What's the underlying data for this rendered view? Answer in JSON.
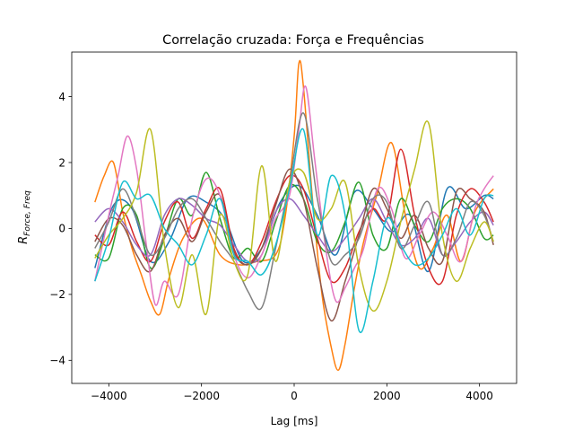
{
  "chart_data": {
    "type": "line",
    "title": "Correlação cruzada: Força e Frequências",
    "xlabel": "Lag [ms]",
    "ylabel": {
      "main": "R",
      "sub": "Force, Freq"
    },
    "xlim": [
      -4800,
      4800
    ],
    "ylim": [
      -4.7,
      5.35
    ],
    "xticks": [
      -4000,
      -2000,
      0,
      2000,
      4000
    ],
    "yticks": [
      -4,
      -2,
      0,
      2,
      4
    ],
    "grid": false,
    "legend": "none",
    "series": [
      {
        "color": "#1f77b4",
        "x": [
          -4300,
          -3900,
          -3500,
          -3100,
          -2700,
          -2300,
          -1900,
          -1500,
          -1100,
          -700,
          -300,
          100,
          500,
          900,
          1300,
          1700,
          2100,
          2500,
          2900,
          3300,
          3700,
          4100,
          4300
        ],
        "y": [
          -1.2,
          0.7,
          0.6,
          -1.0,
          -0.4,
          0.9,
          0.8,
          0.3,
          -1.0,
          -0.6,
          0.8,
          1.3,
          0.4,
          -0.8,
          1.1,
          0.6,
          -0.1,
          0.4,
          -1.3,
          1.2,
          0.6,
          1.0,
          0.9
        ]
      },
      {
        "color": "#ff7f0e",
        "x": [
          -4300,
          -4100,
          -3900,
          -3700,
          -3500,
          -3300,
          -3100,
          -2900,
          -2700,
          -2400,
          -2000,
          -1600,
          -1200,
          -800,
          -400,
          -200,
          0,
          100,
          200,
          400,
          600,
          800,
          950,
          1100,
          1300,
          1500,
          1800,
          2100,
          2400,
          2700,
          3000,
          3300,
          3600,
          3900,
          4300
        ],
        "y": [
          0.8,
          1.6,
          2.0,
          0.5,
          -0.6,
          -1.4,
          -2.2,
          -2.6,
          -1.5,
          -0.3,
          0.3,
          -0.8,
          -1.1,
          -1.0,
          -0.8,
          0.3,
          2.8,
          5.0,
          4.3,
          0.8,
          -2.0,
          -3.6,
          -4.3,
          -3.5,
          -1.8,
          -0.4,
          1.1,
          2.6,
          0.4,
          -1.2,
          -0.6,
          0.4,
          -1.0,
          0.5,
          1.2
        ]
      },
      {
        "color": "#2ca02c",
        "x": [
          -4300,
          -4000,
          -3700,
          -3400,
          -3100,
          -2800,
          -2500,
          -2200,
          -1900,
          -1600,
          -1300,
          -1000,
          -700,
          -400,
          -100,
          200,
          500,
          800,
          1100,
          1400,
          1700,
          2000,
          2300,
          2600,
          2900,
          3200,
          3500,
          3800,
          4100,
          4300
        ],
        "y": [
          -0.8,
          -0.9,
          0.6,
          0.4,
          -1.2,
          -0.3,
          0.9,
          0.4,
          1.7,
          0.3,
          -0.9,
          -0.6,
          -1.0,
          0.2,
          1.3,
          0.9,
          -0.4,
          -0.7,
          0.2,
          1.4,
          -0.2,
          -0.6,
          0.9,
          0.1,
          -0.4,
          0.6,
          0.9,
          0.6,
          -0.3,
          -0.2
        ]
      },
      {
        "color": "#d62728",
        "x": [
          -4300,
          -4000,
          -3700,
          -3400,
          -3100,
          -2800,
          -2500,
          -2200,
          -1900,
          -1600,
          -1300,
          -1000,
          -700,
          -400,
          -100,
          200,
          500,
          800,
          1100,
          1400,
          1700,
          2000,
          2300,
          2600,
          2900,
          3200,
          3500,
          3800,
          4100,
          4300
        ],
        "y": [
          -0.2,
          -0.5,
          0.5,
          -0.4,
          -1.0,
          0.2,
          0.8,
          -0.3,
          0.6,
          1.2,
          -0.6,
          -1.1,
          -0.4,
          0.8,
          1.6,
          1.2,
          -0.3,
          -1.6,
          -1.2,
          -0.1,
          0.6,
          0.3,
          2.4,
          0.4,
          -1.2,
          -1.6,
          0.4,
          1.2,
          0.8,
          0.2
        ]
      },
      {
        "color": "#9467bd",
        "x": [
          -4300,
          -4000,
          -3700,
          -3400,
          -3100,
          -2800,
          -2500,
          -2200,
          -1900,
          -1600,
          -1300,
          -1000,
          -700,
          -400,
          -100,
          200,
          500,
          800,
          1100,
          1400,
          1700,
          2000,
          2300,
          2600,
          2900,
          3200,
          3500,
          3800,
          4100,
          4300
        ],
        "y": [
          0.2,
          0.6,
          0.2,
          -0.5,
          -0.8,
          0.4,
          0.9,
          0.7,
          0.3,
          0.1,
          -0.5,
          -1.0,
          -0.8,
          0.5,
          0.9,
          0.4,
          -0.2,
          -0.7,
          -0.3,
          0.3,
          0.9,
          0.2,
          -0.5,
          -0.3,
          0.3,
          -0.8,
          -0.4,
          0.2,
          0.5,
          0.1
        ]
      },
      {
        "color": "#8c564b",
        "x": [
          -4300,
          -4000,
          -3700,
          -3400,
          -3100,
          -2800,
          -2500,
          -2200,
          -1900,
          -1600,
          -1300,
          -1000,
          -700,
          -400,
          -100,
          200,
          500,
          800,
          1100,
          1400,
          1700,
          2000,
          2300,
          2600,
          2900,
          3200,
          3500,
          3800,
          4100,
          4300
        ],
        "y": [
          -0.4,
          0.3,
          0.1,
          -0.8,
          -1.3,
          -0.2,
          0.3,
          -0.4,
          0.5,
          1.0,
          -0.7,
          -1.1,
          -0.6,
          0.7,
          1.8,
          0.9,
          -1.2,
          -2.8,
          -1.6,
          -0.2,
          1.2,
          0.6,
          -0.3,
          0.4,
          -0.6,
          -1.0,
          1.1,
          0.9,
          0.5,
          -0.5
        ]
      },
      {
        "color": "#e377c2",
        "x": [
          -4300,
          -4000,
          -3800,
          -3600,
          -3400,
          -3200,
          -3000,
          -2800,
          -2500,
          -2200,
          -1900,
          -1600,
          -1300,
          -1000,
          -700,
          -400,
          -100,
          100,
          250,
          450,
          700,
          900,
          1100,
          1300,
          1500,
          1800,
          2100,
          2400,
          2700,
          3000,
          3300,
          3600,
          3900,
          4100,
          4300
        ],
        "y": [
          -1.6,
          0.4,
          1.6,
          2.8,
          1.8,
          -0.4,
          -2.3,
          -1.6,
          -2.0,
          0.3,
          1.5,
          1.0,
          -0.8,
          -1.5,
          -0.8,
          0.3,
          1.0,
          3.0,
          4.3,
          2.0,
          -0.8,
          -2.2,
          -1.8,
          -1.2,
          -0.6,
          1.2,
          0.6,
          -0.9,
          -0.2,
          0.5,
          -0.2,
          -1.0,
          0.6,
          1.2,
          1.6
        ]
      },
      {
        "color": "#7f7f7f",
        "x": [
          -4300,
          -4000,
          -3700,
          -3400,
          -3100,
          -2800,
          -2500,
          -2200,
          -1900,
          -1600,
          -1300,
          -1000,
          -700,
          -400,
          -100,
          200,
          500,
          800,
          1100,
          1400,
          1700,
          2000,
          2300,
          2600,
          2900,
          3200,
          3500,
          3800,
          4100,
          4300
        ],
        "y": [
          -0.6,
          0.2,
          1.2,
          0.3,
          -0.8,
          -0.3,
          0.6,
          0.9,
          0.3,
          -0.4,
          -1.0,
          -1.9,
          -2.4,
          -0.6,
          1.4,
          3.5,
          0.9,
          -1.0,
          -0.8,
          -0.3,
          0.9,
          0.8,
          -0.6,
          0.1,
          0.8,
          -0.8,
          -0.3,
          0.8,
          0.4,
          -0.4
        ]
      },
      {
        "color": "#bcbd22",
        "x": [
          -4300,
          -4000,
          -3700,
          -3400,
          -3100,
          -2800,
          -2500,
          -2200,
          -1900,
          -1600,
          -1300,
          -1000,
          -700,
          -400,
          -100,
          200,
          500,
          800,
          1100,
          1400,
          1700,
          2000,
          2300,
          2600,
          2900,
          3200,
          3500,
          3800,
          4100,
          4300
        ],
        "y": [
          -0.9,
          -0.2,
          0.3,
          1.1,
          3.0,
          -0.5,
          -2.4,
          -0.8,
          -2.6,
          0.4,
          -1.0,
          -1.4,
          1.9,
          -1.0,
          1.4,
          1.7,
          0.3,
          0.6,
          1.4,
          -1.2,
          -2.5,
          -1.6,
          0.2,
          1.8,
          3.2,
          -0.2,
          -1.6,
          -0.6,
          0.2,
          -0.4
        ]
      },
      {
        "color": "#17becf",
        "x": [
          -4300,
          -4000,
          -3700,
          -3400,
          -3100,
          -2800,
          -2500,
          -2200,
          -1900,
          -1600,
          -1300,
          -1000,
          -700,
          -400,
          -100,
          200,
          500,
          800,
          1100,
          1400,
          1700,
          2000,
          2300,
          2600,
          2900,
          3200,
          3500,
          3800,
          4100,
          4300
        ],
        "y": [
          -1.6,
          -0.3,
          1.4,
          0.9,
          1.0,
          0.0,
          -0.5,
          -1.1,
          -0.2,
          0.9,
          -0.8,
          -1.0,
          -1.4,
          -0.5,
          1.2,
          3.0,
          -0.2,
          1.6,
          0.4,
          -3.1,
          -1.6,
          0.3,
          -0.5,
          -1.1,
          -0.9,
          -0.2,
          0.6,
          -0.2,
          0.9,
          1.0
        ]
      }
    ]
  }
}
